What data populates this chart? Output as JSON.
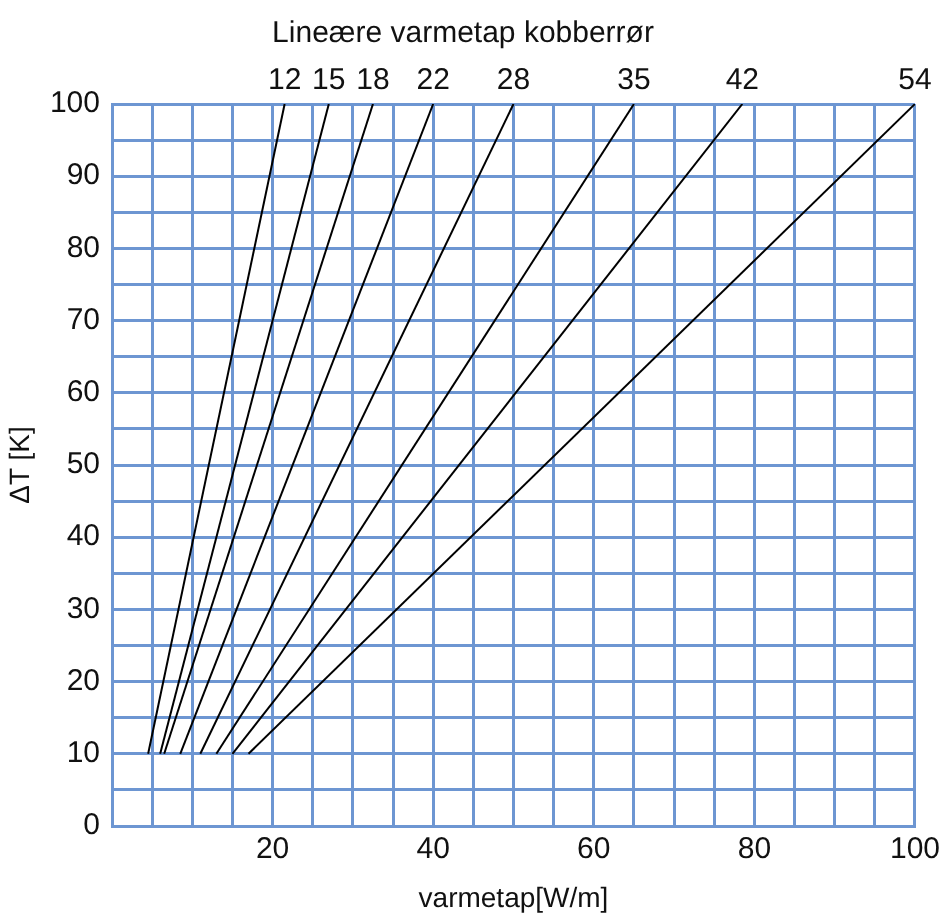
{
  "chart_data": {
    "type": "line",
    "title": "Lineære varmetap kobberrør",
    "xlabel": "varmetap[W/m]",
    "ylabel": "ΔT [K]",
    "series": [
      {
        "name": "12",
        "color": "#000000",
        "x": [
          4.5,
          21.5
        ],
        "values": [
          10,
          100
        ]
      },
      {
        "name": "15",
        "color": "#000000",
        "x": [
          6,
          27
        ],
        "values": [
          10,
          100
        ]
      },
      {
        "name": "18",
        "color": "#000000",
        "x": [
          6.5,
          32.5
        ],
        "values": [
          10,
          100
        ]
      },
      {
        "name": "22",
        "color": "#000000",
        "x": [
          8.5,
          40
        ],
        "values": [
          10,
          100
        ]
      },
      {
        "name": "28",
        "color": "#000000",
        "x": [
          11,
          50
        ],
        "values": [
          10,
          100
        ]
      },
      {
        "name": "35",
        "color": "#000000",
        "x": [
          13,
          65
        ],
        "values": [
          10,
          100
        ]
      },
      {
        "name": "42",
        "color": "#000000",
        "x": [
          15,
          78.5
        ],
        "values": [
          10,
          100
        ]
      },
      {
        "name": "54",
        "color": "#000000",
        "x": [
          17,
          100
        ],
        "values": [
          10,
          100
        ]
      }
    ],
    "xlim": [
      0,
      100
    ],
    "xticks": [
      {
        "value": 0,
        "label": null
      },
      {
        "value": 5,
        "label": null
      },
      {
        "value": 10,
        "label": null
      },
      {
        "value": 15,
        "label": null
      },
      20,
      {
        "value": 25,
        "label": null
      },
      {
        "value": 30,
        "label": null
      },
      {
        "value": 35,
        "label": null
      },
      40,
      {
        "value": 45,
        "label": null
      },
      {
        "value": 50,
        "label": null
      },
      {
        "value": 55,
        "label": null
      },
      60,
      {
        "value": 65,
        "label": null
      },
      {
        "value": 70,
        "label": null
      },
      {
        "value": 75,
        "label": null
      },
      80,
      {
        "value": 85,
        "label": null
      },
      {
        "value": 90,
        "label": null
      },
      {
        "value": 95,
        "label": null
      },
      100
    ],
    "ylim": [
      0,
      100
    ],
    "yticks": [
      0,
      {
        "value": 5,
        "label": null
      },
      10,
      {
        "value": 15,
        "label": null
      },
      20,
      {
        "value": 25,
        "label": null
      },
      30,
      {
        "value": 35,
        "label": null
      },
      40,
      {
        "value": 45,
        "label": null
      },
      50,
      {
        "value": 55,
        "label": null
      },
      60,
      {
        "value": 65,
        "label": null
      },
      70,
      {
        "value": 75,
        "label": null
      },
      80,
      {
        "value": 85,
        "label": null
      },
      90,
      {
        "value": 95,
        "label": null
      },
      100
    ],
    "grid": true,
    "legend": false,
    "marker": "none",
    "line_style": "solid"
  }
}
